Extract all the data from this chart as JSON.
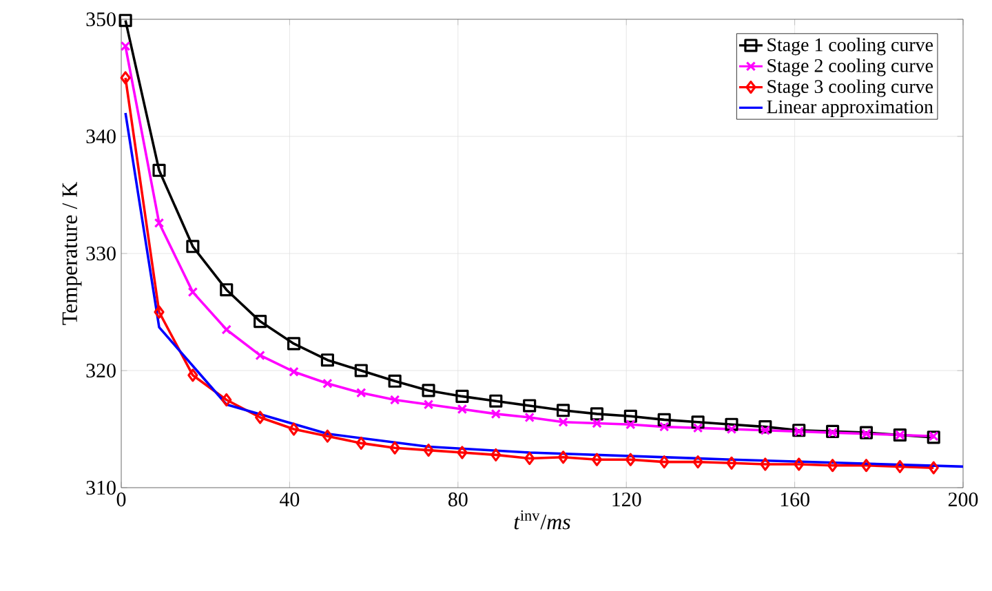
{
  "chart_data": {
    "type": "line",
    "xlabel": "*t*$^{inv}$/*ms*",
    "ylabel": "Temperature / K",
    "x": [
      1,
      9,
      17,
      25,
      33,
      41,
      49,
      57,
      65,
      73,
      81,
      89,
      97,
      105,
      113,
      121,
      129,
      137,
      145,
      153,
      161,
      169,
      177,
      185,
      193
    ],
    "xlim": [
      0,
      200
    ],
    "ylim": [
      310,
      350
    ],
    "xticks": [
      0,
      40,
      80,
      120,
      160,
      200
    ],
    "yticks": [
      310,
      320,
      330,
      340,
      350
    ],
    "grid": true,
    "legend": "top right",
    "line_style": "solid",
    "series": [
      {
        "name": "Stage 1 cooling curve",
        "color": "#000000",
        "marker": "square",
        "values": [
          349.9,
          337.1,
          330.6,
          326.9,
          324.2,
          322.3,
          320.9,
          320.0,
          319.1,
          318.3,
          317.8,
          317.4,
          317.0,
          316.6,
          316.3,
          316.1,
          315.8,
          315.6,
          315.4,
          315.2,
          314.9,
          314.8,
          314.7,
          314.5,
          314.3
        ]
      },
      {
        "name": "Stage 2 cooling curve",
        "color": "#ff00ff",
        "marker": "cross",
        "values": [
          347.7,
          332.6,
          326.7,
          323.5,
          321.3,
          319.9,
          318.9,
          318.1,
          317.5,
          317.1,
          316.7,
          316.3,
          316.0,
          315.6,
          315.5,
          315.4,
          315.2,
          315.1,
          315.0,
          314.9,
          314.8,
          314.7,
          314.6,
          314.5,
          314.4
        ]
      },
      {
        "name": "Stage 3 cooling curve",
        "color": "#ff0000",
        "marker": "diamond",
        "values": [
          345.0,
          325.0,
          319.6,
          317.5,
          316.0,
          315.0,
          314.4,
          313.8,
          313.4,
          313.2,
          313.0,
          312.8,
          312.5,
          312.6,
          312.4,
          312.4,
          312.2,
          312.2,
          312.1,
          312.0,
          312.0,
          311.9,
          311.9,
          311.8,
          311.7
        ]
      },
      {
        "name": "Linear approximation",
        "color": "#0000ff",
        "marker": "none",
        "x": [
          1,
          9,
          25,
          49,
          73,
          97,
          145,
          200
        ],
        "values": [
          342.0,
          323.7,
          317.1,
          314.6,
          313.5,
          313.0,
          312.4,
          311.8
        ]
      }
    ]
  }
}
